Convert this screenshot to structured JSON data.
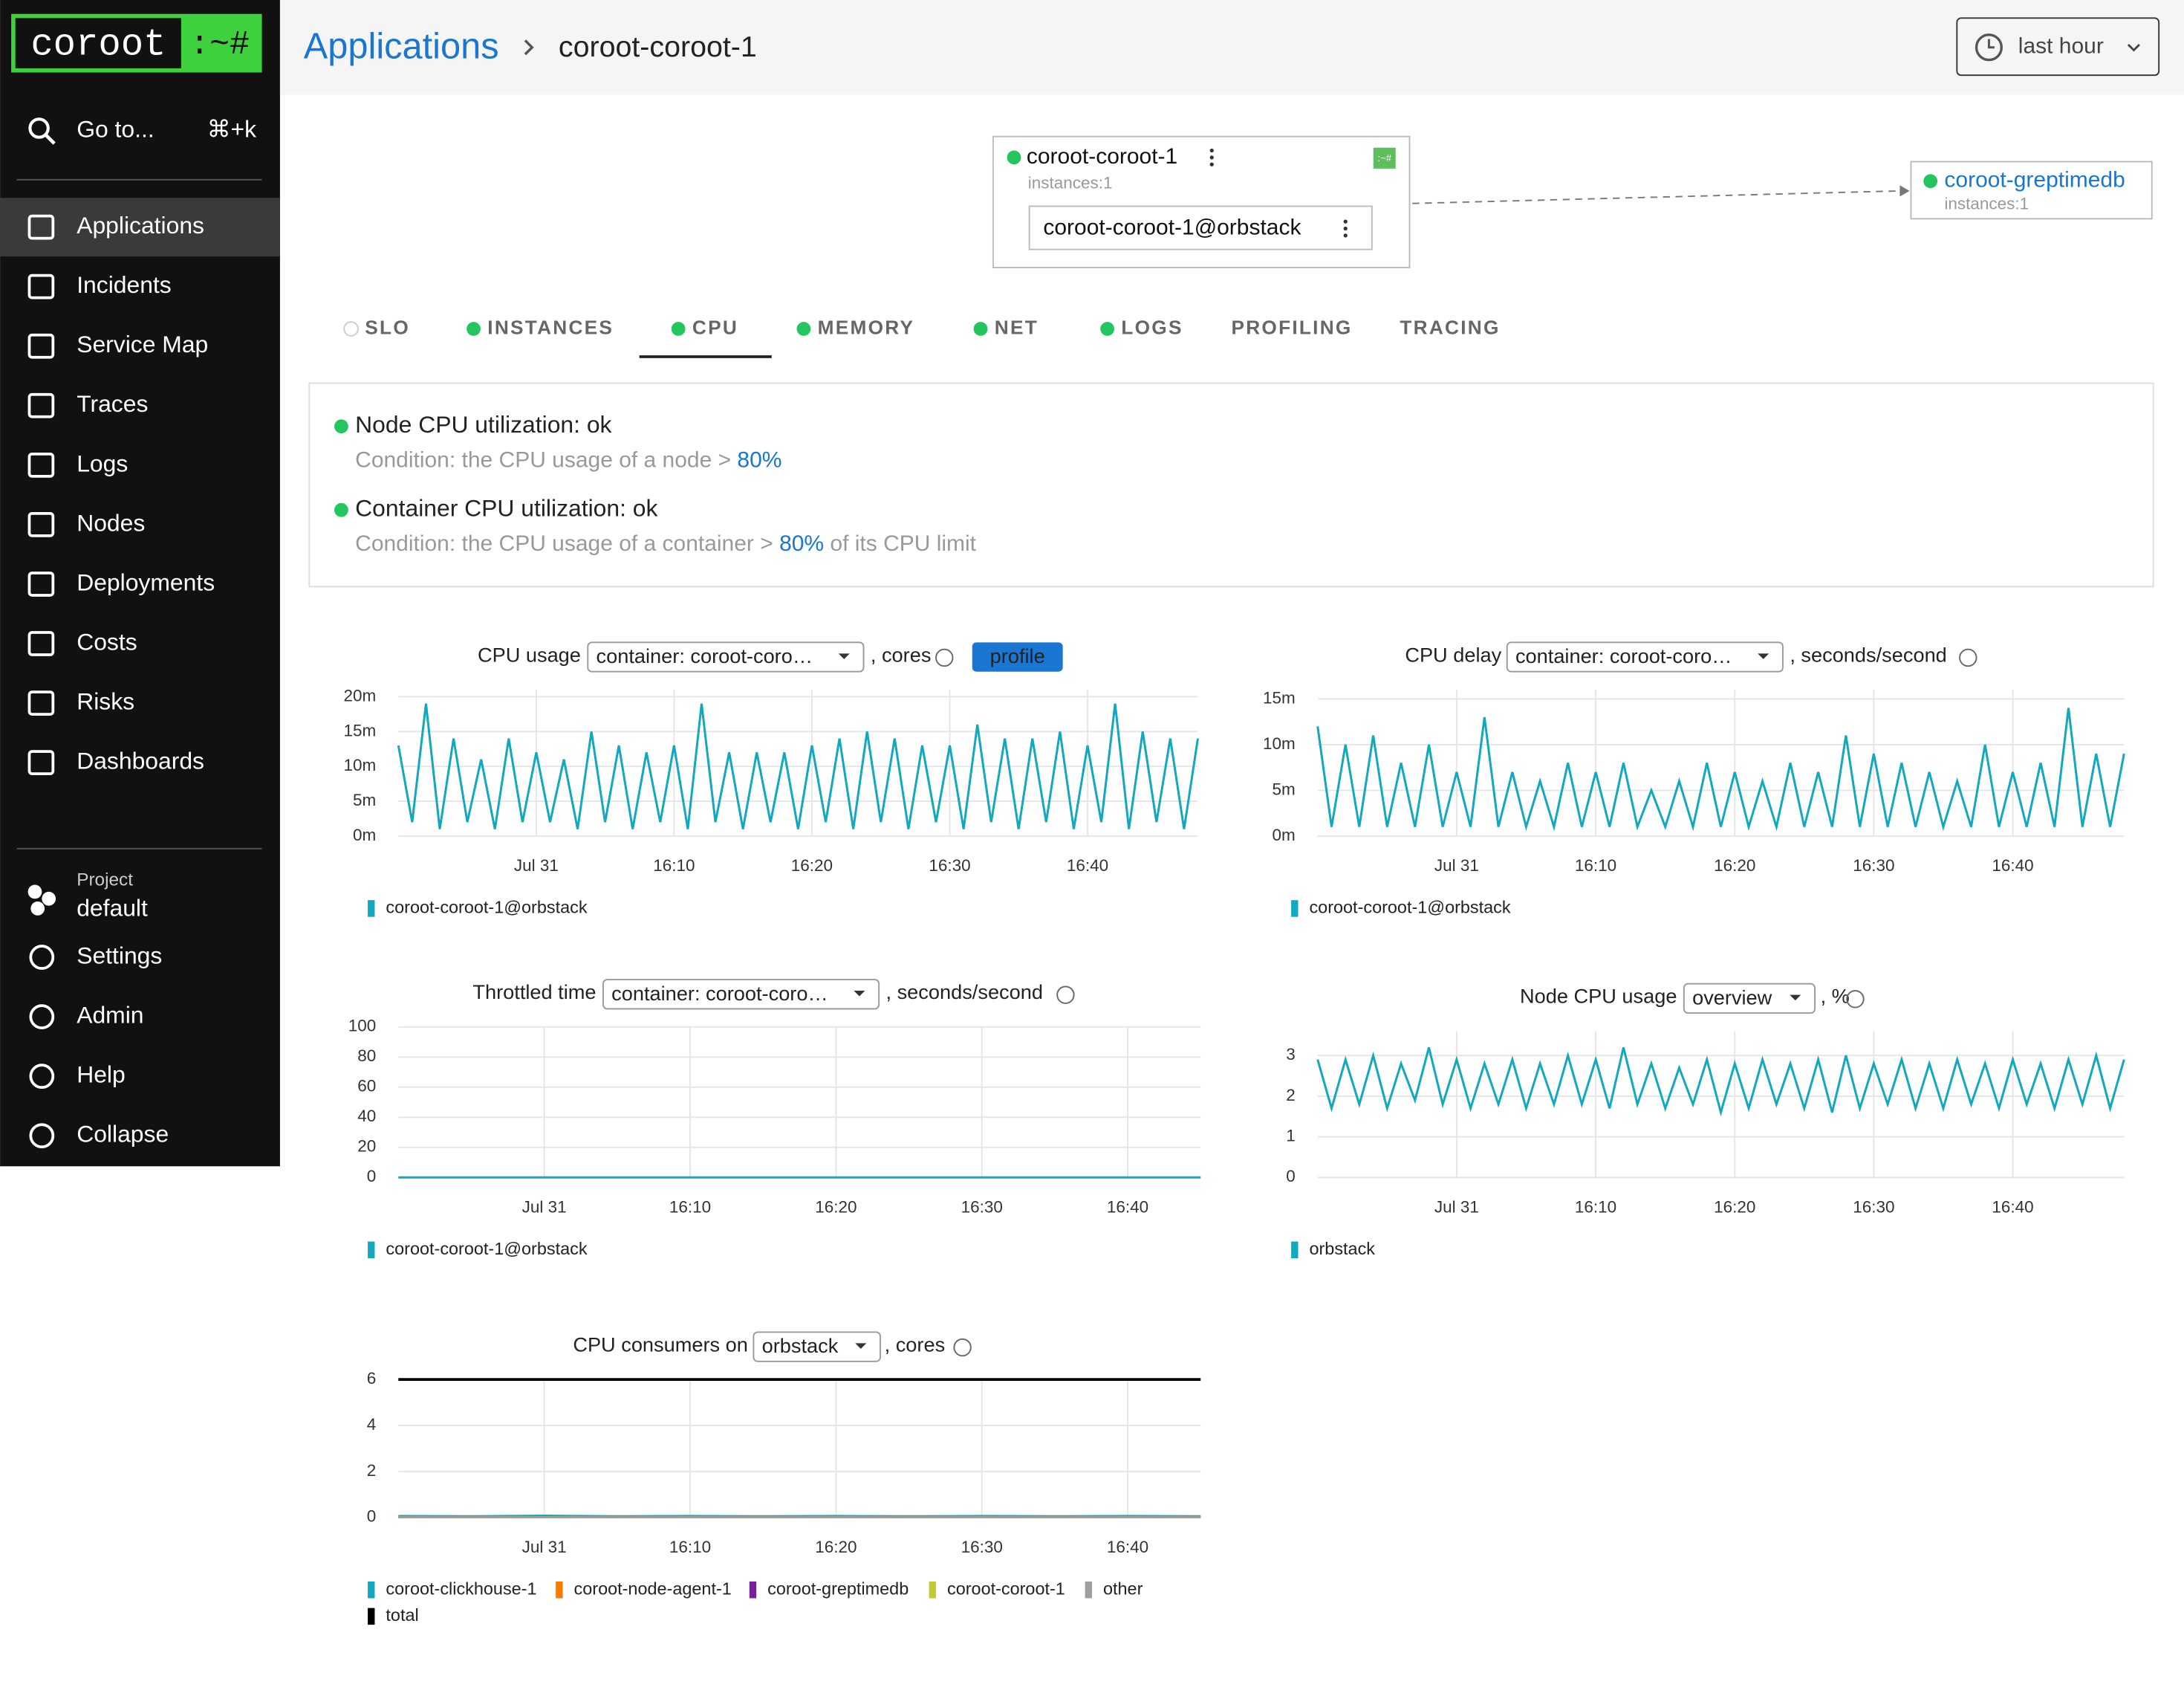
{
  "sidebar": {
    "logo": "coroot",
    "logo_suffix": ":~#",
    "search": "Go to...",
    "shortcut": "⌘+k",
    "items": [
      "Applications",
      "Incidents",
      "Service Map",
      "Traces",
      "Logs",
      "Nodes",
      "Deployments",
      "Costs",
      "Risks",
      "Dashboards"
    ],
    "project_label": "Project",
    "project": "default",
    "bottom": [
      "Settings",
      "Admin",
      "Help",
      "Collapse"
    ]
  },
  "header": {
    "breadcrumb": "Applications",
    "current": "coroot-coroot-1",
    "time": "last hour"
  },
  "map": {
    "app": "coroot-coroot-1",
    "app_instances": "instances:1",
    "badge": ":~#",
    "instance": "coroot-coroot-1@orbstack",
    "dep": "coroot-greptimedb",
    "dep_instances": "instances:1"
  },
  "tabs": [
    {
      "label": "SLO",
      "status": "none"
    },
    {
      "label": "INSTANCES",
      "status": "ok"
    },
    {
      "label": "CPU",
      "status": "ok"
    },
    {
      "label": "MEMORY",
      "status": "ok"
    },
    {
      "label": "NET",
      "status": "ok"
    },
    {
      "label": "LOGS",
      "status": "ok"
    },
    {
      "label": "PROFILING",
      "status": "none"
    },
    {
      "label": "TRACING",
      "status": "none"
    }
  ],
  "active_tab": 2,
  "checks": [
    {
      "title": "Node CPU utilization: ok",
      "condition": "Condition: the CPU usage of a node > ",
      "threshold": "80%"
    },
    {
      "title": "Container CPU utilization: ok",
      "condition": "Condition: the CPU usage of a container > ",
      "threshold": "80%",
      "suffix": " of its CPU limit"
    }
  ],
  "chart_data": [
    {
      "type": "line",
      "title": "CPU usage",
      "selector": "container: coroot-coro…",
      "unit": ", cores",
      "button": "profile",
      "categories": [
        null,
        null,
        null,
        null,
        null,
        null,
        null,
        null,
        null,
        null,
        "Jul 31",
        null,
        null,
        null,
        null,
        null,
        null,
        null,
        null,
        null,
        "16:10",
        null,
        null,
        null,
        null,
        null,
        null,
        null,
        null,
        null,
        "16:20",
        null,
        null,
        null,
        null,
        null,
        null,
        null,
        null,
        null,
        "16:30",
        null,
        null,
        null,
        null,
        null,
        null,
        null,
        null,
        null,
        "16:40",
        null,
        null,
        null,
        null,
        null,
        null,
        null,
        null
      ],
      "ylim": [
        0,
        0.021
      ],
      "yticks": [
        {
          "value": 0,
          "label": "0m"
        },
        {
          "value": 0.005,
          "label": "5m"
        },
        {
          "value": 0.01,
          "label": "10m"
        },
        {
          "value": 0.015,
          "label": "15m"
        },
        {
          "value": 0.02,
          "label": "20m"
        }
      ],
      "grid": true,
      "series": [
        {
          "name": "coroot-coroot-1@orbstack",
          "color": "#12a8bd",
          "values": [
            0.013,
            0.002,
            0.019,
            0.001,
            0.014,
            0.002,
            0.011,
            0.001,
            0.014,
            0.002,
            0.012,
            0.002,
            0.011,
            0.001,
            0.015,
            0.002,
            0.013,
            0.001,
            0.012,
            0.002,
            0.013,
            0.001,
            0.019,
            0.002,
            0.012,
            0.001,
            0.012,
            0.002,
            0.012,
            0.001,
            0.013,
            0.002,
            0.014,
            0.001,
            0.015,
            0.002,
            0.014,
            0.001,
            0.013,
            0.002,
            0.013,
            0.001,
            0.016,
            0.002,
            0.014,
            0.001,
            0.014,
            0.002,
            0.015,
            0.001,
            0.013,
            0.002,
            0.019,
            0.001,
            0.015,
            0.002,
            0.014,
            0.001,
            0.014
          ]
        }
      ]
    },
    {
      "type": "line",
      "title": "CPU delay",
      "selector": "container: coroot-coro…",
      "unit": ", seconds/second",
      "categories": [
        null,
        null,
        null,
        null,
        null,
        null,
        null,
        null,
        null,
        null,
        "Jul 31",
        null,
        null,
        null,
        null,
        null,
        null,
        null,
        null,
        null,
        "16:10",
        null,
        null,
        null,
        null,
        null,
        null,
        null,
        null,
        null,
        "16:20",
        null,
        null,
        null,
        null,
        null,
        null,
        null,
        null,
        null,
        "16:30",
        null,
        null,
        null,
        null,
        null,
        null,
        null,
        null,
        null,
        "16:40",
        null,
        null,
        null,
        null,
        null,
        null,
        null,
        null
      ],
      "ylim": [
        0,
        0.016
      ],
      "yticks": [
        {
          "value": 0,
          "label": "0m"
        },
        {
          "value": 0.005,
          "label": "5m"
        },
        {
          "value": 0.01,
          "label": "10m"
        },
        {
          "value": 0.015,
          "label": "15m"
        }
      ],
      "grid": true,
      "series": [
        {
          "name": "coroot-coroot-1@orbstack",
          "color": "#12a8bd",
          "values": [
            0.012,
            0.001,
            0.01,
            0.001,
            0.011,
            0.001,
            0.008,
            0.001,
            0.01,
            0.001,
            0.007,
            0.001,
            0.013,
            0.001,
            0.007,
            0.001,
            0.006,
            0.001,
            0.008,
            0.001,
            0.007,
            0.001,
            0.008,
            0.001,
            0.005,
            0.001,
            0.006,
            0.001,
            0.008,
            0.001,
            0.007,
            0.001,
            0.006,
            0.001,
            0.008,
            0.001,
            0.007,
            0.001,
            0.011,
            0.001,
            0.009,
            0.001,
            0.008,
            0.001,
            0.007,
            0.001,
            0.006,
            0.001,
            0.01,
            0.001,
            0.007,
            0.001,
            0.008,
            0.001,
            0.014,
            0.001,
            0.009,
            0.001,
            0.009
          ]
        }
      ]
    },
    {
      "type": "line",
      "title": "Throttled time",
      "selector": "container: coroot-coro…",
      "unit": ", seconds/second",
      "categories": [
        null,
        null,
        "Jul 31",
        null,
        "16:10",
        null,
        "16:20",
        null,
        "16:30",
        null,
        "16:40",
        null
      ],
      "ylim": [
        0,
        100
      ],
      "yticks": [
        0,
        20,
        40,
        60,
        80,
        100
      ],
      "grid": true,
      "series": [
        {
          "name": "coroot-coroot-1@orbstack",
          "color": "#12a8bd",
          "values": [
            0,
            0,
            0,
            0,
            0,
            0,
            0,
            0,
            0,
            0,
            0,
            0
          ]
        }
      ]
    },
    {
      "type": "line",
      "title": "Node CPU usage",
      "selector": "overview",
      "unit": ", %",
      "categories": [
        null,
        null,
        null,
        null,
        null,
        null,
        null,
        null,
        null,
        null,
        "Jul 31",
        null,
        null,
        null,
        null,
        null,
        null,
        null,
        null,
        null,
        "16:10",
        null,
        null,
        null,
        null,
        null,
        null,
        null,
        null,
        null,
        "16:20",
        null,
        null,
        null,
        null,
        null,
        null,
        null,
        null,
        null,
        "16:30",
        null,
        null,
        null,
        null,
        null,
        null,
        null,
        null,
        null,
        "16:40",
        null,
        null,
        null,
        null,
        null,
        null,
        null,
        null
      ],
      "ylim": [
        0,
        3.6
      ],
      "yticks": [
        0,
        1,
        2,
        3
      ],
      "grid": true,
      "series": [
        {
          "name": "orbstack",
          "color": "#12a8bd",
          "values": [
            2.9,
            1.7,
            2.9,
            1.8,
            3.0,
            1.7,
            2.8,
            1.9,
            3.2,
            1.8,
            2.9,
            1.7,
            2.8,
            1.8,
            2.9,
            1.7,
            2.8,
            1.8,
            3.0,
            1.8,
            2.9,
            1.7,
            3.2,
            1.8,
            2.8,
            1.7,
            2.7,
            1.8,
            2.9,
            1.6,
            2.8,
            1.7,
            2.9,
            1.8,
            2.8,
            1.7,
            2.9,
            1.6,
            3.0,
            1.7,
            2.8,
            1.8,
            2.9,
            1.7,
            2.8,
            1.7,
            2.9,
            1.8,
            2.8,
            1.7,
            2.9,
            1.8,
            2.8,
            1.7,
            2.9,
            1.8,
            3.0,
            1.7,
            2.9
          ]
        }
      ]
    },
    {
      "type": "line",
      "title": "CPU consumers on",
      "selector": "orbstack",
      "unit": ", cores",
      "categories": [
        null,
        null,
        "Jul 31",
        null,
        "16:10",
        null,
        "16:20",
        null,
        "16:30",
        null,
        "16:40",
        null
      ],
      "ylim": [
        0,
        6
      ],
      "yticks": [
        0,
        2,
        4,
        6
      ],
      "grid": true,
      "series": [
        {
          "name": "coroot-clickhouse-1",
          "color": "#12a8bd",
          "values": [
            0.06,
            0.05,
            0.07,
            0.05,
            0.06,
            0.05,
            0.06,
            0.05,
            0.06,
            0.05,
            0.06,
            0.05
          ]
        },
        {
          "name": "coroot-node-agent-1",
          "color": "#f57c00",
          "values": [
            0.02,
            0.02,
            0.02,
            0.02,
            0.02,
            0.02,
            0.02,
            0.02,
            0.02,
            0.02,
            0.02,
            0.02
          ]
        },
        {
          "name": "coroot-greptimedb",
          "color": "#7b1fa2",
          "values": [
            0.02,
            0.02,
            0.02,
            0.02,
            0.02,
            0.02,
            0.02,
            0.02,
            0.02,
            0.02,
            0.02,
            0.02
          ]
        },
        {
          "name": "coroot-coroot-1",
          "color": "#c0ca33",
          "values": [
            0.01,
            0.01,
            0.01,
            0.01,
            0.01,
            0.01,
            0.01,
            0.01,
            0.01,
            0.01,
            0.01,
            0.01
          ]
        },
        {
          "name": "other",
          "color": "#9e9e9e",
          "values": [
            0.01,
            0.01,
            0.01,
            0.01,
            0.01,
            0.01,
            0.01,
            0.01,
            0.01,
            0.01,
            0.01,
            0.01
          ]
        },
        {
          "name": "total",
          "color": "#000000",
          "values": [
            6,
            6,
            6,
            6,
            6,
            6,
            6,
            6,
            6,
            6,
            6,
            6
          ]
        }
      ]
    }
  ]
}
